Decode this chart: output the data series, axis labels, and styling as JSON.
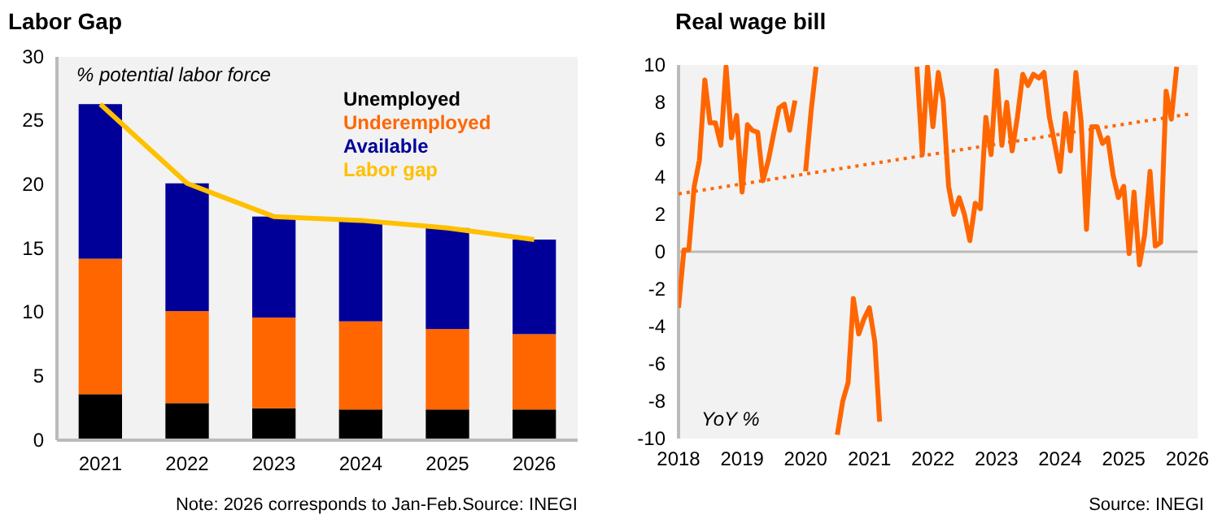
{
  "chart_data": [
    {
      "type": "bar",
      "title": "Labor Gap",
      "ylabel": "% potential labor force",
      "stacked": true,
      "legend": "top right",
      "categories": [
        "2021",
        "2022",
        "2023",
        "2024",
        "2025",
        "2026"
      ],
      "ylim": [
        0,
        30
      ],
      "yticks": [
        0,
        5,
        10,
        15,
        20,
        25,
        30
      ],
      "series": [
        {
          "name": "Unemployed",
          "color": "#000000",
          "values": [
            3.6,
            2.9,
            2.5,
            2.4,
            2.4,
            2.4
          ]
        },
        {
          "name": "Underemployed",
          "color": "#ff6600",
          "values": [
            10.6,
            7.2,
            7.1,
            6.9,
            6.3,
            5.9
          ]
        },
        {
          "name": "Available",
          "color": "#000099",
          "values": [
            12.1,
            10.0,
            7.9,
            7.8,
            7.9,
            7.4
          ]
        },
        {
          "name": "Labor gap",
          "type": "line",
          "color": "#ffc000",
          "values": [
            26.3,
            20.1,
            17.5,
            17.2,
            16.6,
            15.7
          ]
        }
      ],
      "annotations": [
        "Note: 2026 corresponds to Jan-Feb.Source: INEGI"
      ]
    },
    {
      "type": "line",
      "title": "Real wage bill",
      "ylabel": "YoY %",
      "xlim": [
        "2018-01",
        "2026-03"
      ],
      "xticks": [
        "2018",
        "2019",
        "2020",
        "2021",
        "2022",
        "2023",
        "2024",
        "2025",
        "2026"
      ],
      "ylim": [
        -10,
        10
      ],
      "yticks": [
        -10,
        -8,
        -6,
        -4,
        -2,
        0,
        2,
        4,
        6,
        8,
        10
      ],
      "series": [
        {
          "color": "#ff6600",
          "line_style": "solid",
          "x": [
            "2018-01",
            "2018-02",
            "2018-03",
            "2018-04",
            "2018-05",
            "2018-06",
            "2018-07",
            "2018-08",
            "2018-09",
            "2018-10",
            "2018-11",
            "2018-12",
            "2019-01",
            "2019-02",
            "2019-03",
            "2019-04",
            "2019-05",
            "2019-06",
            "2019-07",
            "2019-08",
            "2019-09",
            "2019-10",
            "2019-11",
            "2019-12",
            "2020-01",
            "2020-02",
            "2020-03",
            "2020-04",
            "2020-05",
            "2020-06",
            "2020-07",
            "2020-08",
            "2020-09",
            "2020-10",
            "2020-11",
            "2020-12",
            "2021-01",
            "2021-02",
            "2021-03",
            "2021-04",
            "2021-05",
            "2021-06",
            "2021-07",
            "2021-08",
            "2021-09",
            "2021-10",
            "2021-11",
            "2021-12",
            "2022-01",
            "2022-02",
            "2022-03",
            "2022-04",
            "2022-05",
            "2022-06",
            "2022-07",
            "2022-08",
            "2022-09",
            "2022-10",
            "2022-11",
            "2022-12",
            "2023-01",
            "2023-02",
            "2023-03",
            "2023-04",
            "2023-05",
            "2023-06",
            "2023-07",
            "2023-08",
            "2023-09",
            "2023-10",
            "2023-11",
            "2023-12",
            "2024-01",
            "2024-02",
            "2024-03",
            "2024-04",
            "2024-05",
            "2024-06",
            "2024-07",
            "2024-08",
            "2024-09",
            "2024-10",
            "2024-11",
            "2024-12",
            "2025-01",
            "2025-02",
            "2025-03",
            "2025-04",
            "2025-05",
            "2025-06",
            "2025-07",
            "2025-08",
            "2025-09",
            "2025-10",
            "2025-11"
          ],
          "values": [
            -3,
            0.1,
            0.1,
            3.5,
            4.9,
            9.2,
            6.9,
            6.9,
            5.7,
            9.9,
            6.1,
            7.3,
            3.2,
            6.8,
            6.5,
            6.4,
            3.8,
            4.9,
            6.3,
            7.7,
            7.9,
            6.5,
            8.1,
            null,
            4.3,
            7.5,
            9.9,
            null,
            null,
            null,
            -9.8,
            -8.0,
            -7.0,
            -2.5,
            -4.4,
            -3.6,
            -3.0,
            -4.8,
            -9.1,
            null,
            null,
            null,
            null,
            null,
            null,
            9.9,
            5.2,
            9.9,
            6.7,
            9.6,
            8.1,
            3.5,
            2.0,
            2.9,
            2.0,
            0.6,
            2.6,
            2.3,
            7.2,
            5.2,
            9.7,
            5.7,
            8.0,
            5.4,
            7.2,
            9.5,
            8.9,
            9.5,
            9.3,
            9.6,
            7.2,
            5.8,
            4.3,
            7.4,
            5.4,
            9.6,
            7.0,
            1.2,
            6.7,
            6.7,
            5.8,
            6.1,
            4.1,
            2.9,
            3.5,
            -0.1,
            3.2,
            -0.7,
            0.9,
            4.3,
            0.3,
            0.5,
            8.6,
            7.1,
            9.9
          ]
        },
        {
          "color": "#ff6600",
          "line_style": "dotted",
          "x": [
            "2018-01",
            "2026-02"
          ],
          "values": [
            3.1,
            7.4
          ]
        }
      ],
      "annotations": [
        "Source: INEGI"
      ]
    }
  ]
}
